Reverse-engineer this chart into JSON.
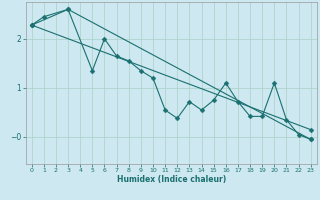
{
  "xlabel": "Humidex (Indice chaleur)",
  "bg_color": "#cde8f0",
  "line_color": "#1a7070",
  "grid_color": "#b0d4cc",
  "xlim": [
    -0.5,
    23.5
  ],
  "ylim": [
    -0.55,
    2.75
  ],
  "xticks": [
    0,
    1,
    2,
    3,
    4,
    5,
    6,
    7,
    8,
    9,
    10,
    11,
    12,
    13,
    14,
    15,
    16,
    17,
    18,
    19,
    20,
    21,
    22,
    23
  ],
  "yticks": [
    0,
    1,
    2
  ],
  "ytick_labels": [
    "−0",
    "1",
    "2"
  ],
  "zigzag_x": [
    0,
    1,
    3,
    5,
    6,
    7,
    8,
    9,
    10,
    11,
    12,
    13,
    14,
    15,
    16,
    17,
    18,
    19,
    20,
    21,
    22,
    23
  ],
  "zigzag_y": [
    2.28,
    2.45,
    2.6,
    1.35,
    2.0,
    1.65,
    1.55,
    1.35,
    1.2,
    0.55,
    0.38,
    0.72,
    0.55,
    0.75,
    1.1,
    0.72,
    0.42,
    0.42,
    1.1,
    0.35,
    0.05,
    -0.05
  ],
  "trend_x": [
    0,
    23
  ],
  "trend_y": [
    2.28,
    0.15
  ],
  "trend2_x": [
    0,
    3,
    23
  ],
  "trend2_y": [
    2.28,
    2.6,
    -0.05
  ],
  "markersize": 2.5
}
